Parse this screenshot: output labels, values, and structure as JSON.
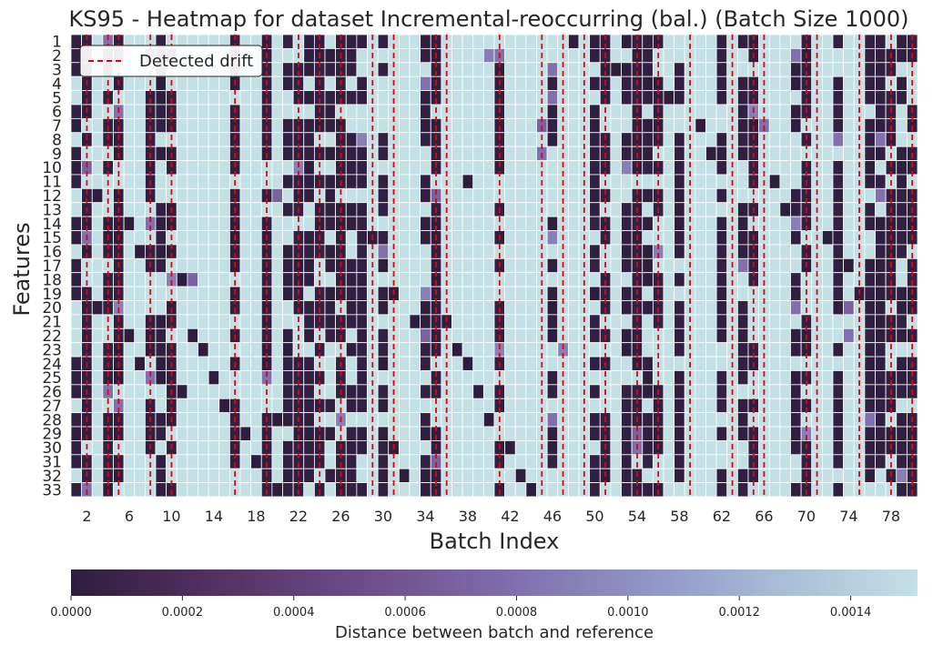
{
  "chart_data": {
    "type": "heatmap",
    "title": "KS95 - Heatmap for dataset Incremental-reoccurring (bal.) (Batch Size 1000)",
    "xlabel": "Batch Index",
    "ylabel": "Features",
    "x_tick_labels": [
      "2",
      "6",
      "10",
      "14",
      "18",
      "22",
      "26",
      "30",
      "34",
      "38",
      "42",
      "46",
      "50",
      "54",
      "58",
      "62",
      "66",
      "70",
      "74",
      "78"
    ],
    "x_tick_values": [
      2,
      6,
      10,
      14,
      18,
      22,
      26,
      30,
      34,
      38,
      42,
      46,
      50,
      54,
      58,
      62,
      66,
      70,
      74,
      78
    ],
    "y_tick_labels": [
      "1",
      "2",
      "3",
      "4",
      "5",
      "6",
      "7",
      "8",
      "9",
      "10",
      "11",
      "12",
      "13",
      "14",
      "15",
      "16",
      "17",
      "18",
      "19",
      "20",
      "21",
      "22",
      "23",
      "24",
      "25",
      "26",
      "27",
      "28",
      "29",
      "30",
      "31",
      "32",
      "33"
    ],
    "x_range": [
      1,
      80
    ],
    "n_features": 33,
    "legend": {
      "label": "Detected drift",
      "placement": "upper-left",
      "color": "#e8000b"
    },
    "colorbar": {
      "label": "Distance between batch and reference",
      "min": 0.0,
      "max": 0.00152,
      "tick_labels": [
        "0.0000",
        "0.0002",
        "0.0004",
        "0.0006",
        "0.0008",
        "0.0010",
        "0.0012",
        "0.0014"
      ],
      "tick_values": [
        0.0,
        0.0002,
        0.0004,
        0.0006,
        0.0008,
        0.001,
        0.0012,
        0.0014
      ],
      "colors": [
        "#2d1e3e",
        "#54305f",
        "#6c4a88",
        "#7d6aa8",
        "#8f91c4",
        "#a6bcd6",
        "#c3e0e5"
      ]
    },
    "drift_batches": [
      2,
      4,
      5,
      8,
      10,
      16,
      19,
      22,
      24,
      26,
      29,
      31,
      35,
      36,
      41,
      45,
      47,
      49,
      51,
      54,
      56,
      59,
      63,
      65,
      66,
      70,
      71,
      75,
      78,
      80
    ],
    "drift_columns": [
      1,
      2,
      4,
      5,
      8,
      9,
      10,
      16,
      19,
      21,
      22,
      23,
      24,
      25,
      26,
      27,
      28,
      30,
      34,
      35,
      41,
      46,
      50,
      51,
      53,
      54,
      55,
      56,
      58,
      62,
      64,
      65,
      69,
      70,
      73,
      76,
      77,
      78,
      79,
      80
    ],
    "mid_cells": [
      [
        2,
        10,
        0.0007
      ],
      [
        4,
        1,
        0.0008
      ],
      [
        5,
        6,
        0.0008
      ],
      [
        5,
        27,
        0.0008
      ],
      [
        10,
        18,
        0.0009
      ],
      [
        8,
        14,
        0.0008
      ],
      [
        8,
        25,
        0.0008
      ],
      [
        19,
        25,
        0.0008
      ],
      [
        40,
        2,
        0.0009
      ],
      [
        41,
        2,
        0.0008
      ],
      [
        41,
        23,
        0.0009
      ],
      [
        46,
        3,
        0.0008
      ],
      [
        46,
        5,
        0.0008
      ],
      [
        46,
        28,
        0.0008
      ],
      [
        46,
        15,
        0.0009
      ],
      [
        45,
        7,
        0.0007
      ],
      [
        45,
        9,
        0.0008
      ],
      [
        53,
        10,
        0.0009
      ],
      [
        56,
        16,
        0.0009
      ],
      [
        54,
        29,
        0.0007
      ],
      [
        54,
        30,
        0.0008
      ],
      [
        64,
        17,
        0.0008
      ],
      [
        65,
        6,
        0.0009
      ],
      [
        66,
        7,
        0.0008
      ],
      [
        69,
        2,
        0.0008
      ],
      [
        69,
        14,
        0.0009
      ],
      [
        69,
        20,
        0.0008
      ],
      [
        73,
        8,
        0.0008
      ],
      [
        79,
        32,
        0.0009
      ],
      [
        77,
        8,
        0.0008
      ],
      [
        22,
        10,
        0.0009
      ],
      [
        26,
        28,
        0.0009
      ],
      [
        28,
        8,
        0.0009
      ],
      [
        30,
        16,
        0.0008
      ],
      [
        35,
        31,
        0.0007
      ],
      [
        35,
        12,
        0.0007
      ],
      [
        34,
        19,
        0.0009
      ],
      [
        34,
        4,
        0.0008
      ],
      [
        77,
        12,
        0.0008
      ],
      [
        12,
        18,
        0.0007
      ],
      [
        2,
        33,
        0.0008
      ],
      [
        4,
        26,
        0.0008
      ],
      [
        2,
        15,
        0.0008
      ],
      [
        76,
        28,
        0.0008
      ],
      [
        70,
        29,
        0.0009
      ],
      [
        20,
        12,
        0.0007
      ],
      [
        74,
        22,
        0.0008
      ],
      [
        74,
        20,
        0.0007
      ],
      [
        34,
        22,
        0.0007
      ],
      [
        5,
        20,
        0.0009
      ],
      [
        47,
        23,
        0.0009
      ]
    ],
    "extra_dark": [
      [
        23,
        1
      ],
      [
        23,
        2
      ],
      [
        23,
        3
      ],
      [
        23,
        5
      ],
      [
        24,
        7
      ],
      [
        25,
        9
      ],
      [
        26,
        11
      ],
      [
        27,
        13
      ],
      [
        29,
        15
      ],
      [
        30,
        17
      ],
      [
        31,
        19
      ],
      [
        33,
        21
      ],
      [
        37,
        23
      ],
      [
        38,
        24
      ],
      [
        39,
        26
      ],
      [
        40,
        28
      ],
      [
        42,
        30
      ],
      [
        43,
        32
      ],
      [
        44,
        33
      ],
      [
        48,
        1
      ],
      [
        52,
        3
      ],
      [
        57,
        5
      ],
      [
        60,
        7
      ],
      [
        61,
        9
      ],
      [
        67,
        11
      ],
      [
        68,
        13
      ],
      [
        72,
        15
      ],
      [
        74,
        17
      ],
      [
        75,
        19
      ],
      [
        77,
        21
      ],
      [
        12,
        22
      ],
      [
        13,
        23
      ],
      [
        14,
        25
      ],
      [
        15,
        27
      ],
      [
        17,
        29
      ],
      [
        18,
        31
      ],
      [
        20,
        33
      ],
      [
        3,
        12
      ],
      [
        6,
        14
      ],
      [
        7,
        16
      ],
      [
        11,
        18
      ],
      [
        3,
        20
      ],
      [
        6,
        22
      ],
      [
        7,
        24
      ],
      [
        11,
        26
      ],
      [
        20,
        28
      ],
      [
        31,
        30
      ],
      [
        32,
        32
      ],
      [
        36,
        21
      ],
      [
        38,
        11
      ]
    ]
  }
}
